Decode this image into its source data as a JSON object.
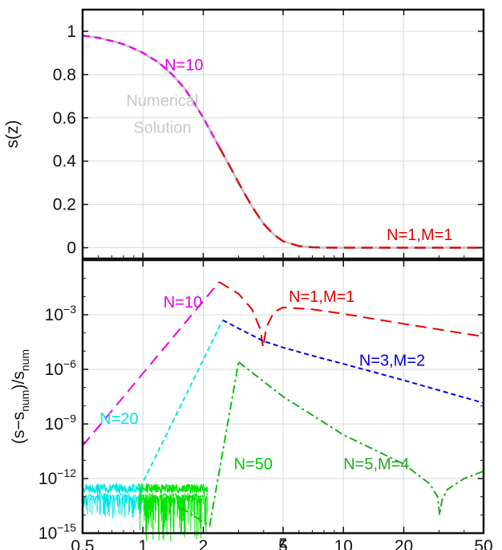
{
  "chart_data": [
    {
      "type": "line",
      "ylabel": "s(z)",
      "xscale": "log",
      "xlim": [
        0.5,
        50
      ],
      "ylim": [
        -0.05,
        1.1
      ],
      "grid": true,
      "xticks": [
        0.5,
        1,
        2,
        5,
        10,
        20,
        50
      ],
      "yticks": [
        0,
        0.2,
        0.4,
        0.6,
        0.8,
        1
      ],
      "ytick_labels": [
        "0",
        "0.2",
        "0.4",
        "0.6",
        "0.8",
        "1"
      ],
      "annotations": [
        {
          "id": "n10",
          "text": "N=10",
          "color": "#e600e6",
          "x": 1.6,
          "y": 0.82
        },
        {
          "id": "numsol1",
          "text": "Numerical",
          "color": "#c8c8c8",
          "x": 1.25,
          "y": 0.655
        },
        {
          "id": "numsol2",
          "text": "Solution",
          "color": "#c8c8c8",
          "x": 1.25,
          "y": 0.53
        },
        {
          "id": "n1m1",
          "text": "N=1,M=1",
          "color": "#e60000",
          "x": 24,
          "y": 0.035
        }
      ],
      "series": [
        {
          "id": "numerical",
          "color": "#c8c8c8",
          "dash": "solid",
          "x": [
            0.5,
            0.6,
            0.7,
            0.8,
            0.9,
            1.0,
            1.2,
            1.4,
            1.6,
            1.8,
            2.0,
            2.2,
            2.4,
            2.7,
            3.0,
            3.5,
            4.0,
            4.5,
            5.0,
            6.0,
            7.0,
            8.0,
            10.0,
            50.0
          ],
          "y": [
            0.98,
            0.97,
            0.955,
            0.94,
            0.92,
            0.9,
            0.855,
            0.8,
            0.74,
            0.67,
            0.6,
            0.53,
            0.465,
            0.38,
            0.3,
            0.19,
            0.11,
            0.06,
            0.03,
            0.008,
            0.002,
            0.0005,
            0.0,
            0.0
          ]
        },
        {
          "id": "n10",
          "name": "N=10",
          "color": "#e600e6",
          "dash": "9,6",
          "x": [
            0.5,
            0.6,
            0.7,
            0.8,
            0.9,
            1.0,
            1.2,
            1.4,
            1.6,
            1.8,
            2.0,
            2.2,
            2.4
          ],
          "y": [
            0.98,
            0.97,
            0.955,
            0.94,
            0.92,
            0.9,
            0.855,
            0.8,
            0.74,
            0.67,
            0.6,
            0.53,
            0.465
          ]
        },
        {
          "id": "n1m1",
          "name": "N=1,M=1",
          "color": "#e60000",
          "dash": "14,8",
          "x": [
            2.4,
            2.7,
            3.0,
            3.5,
            4.0,
            4.5,
            5.0,
            6.0,
            7.0,
            8.0,
            10.0,
            15.0,
            20.0,
            50.0
          ],
          "y": [
            0.465,
            0.38,
            0.3,
            0.19,
            0.11,
            0.06,
            0.03,
            0.008,
            0.002,
            0.0005,
            0.0,
            0.0,
            0.0,
            0.0
          ]
        }
      ]
    },
    {
      "type": "line",
      "xlabel": "z",
      "xscale": "log",
      "yscale": "log",
      "xlim": [
        0.5,
        50
      ],
      "ylim": [
        1e-15,
        1.0
      ],
      "grid": true,
      "xticks": [
        0.5,
        1,
        2,
        5,
        10,
        20,
        50
      ],
      "xtick_labels": [
        "0.5",
        "1",
        "2",
        "5",
        "10",
        "20",
        "50"
      ],
      "yticks": [
        -15,
        -12,
        -9,
        -6,
        -3
      ],
      "ytick_labels": [
        "10",
        "10",
        "10",
        "10",
        "10"
      ],
      "ytick_exponents": [
        "−15",
        "−12",
        "−9",
        "−6",
        "−3"
      ],
      "ylabel_parts": [
        "(s−s",
        "num",
        ")/s",
        "num"
      ],
      "annotations": [
        {
          "id": "n10b",
          "text": "N=10",
          "color": "#e600e6",
          "x": 1.58,
          "logy": -2.6
        },
        {
          "id": "n1m1b",
          "text": "N=1,M=1",
          "color": "#e60000",
          "x": 7.8,
          "logy": -2.3
        },
        {
          "id": "n3m2",
          "text": "N=3,M=2",
          "color": "#0000e6",
          "x": 17.5,
          "logy": -5.8
        },
        {
          "id": "n20",
          "text": "N=20",
          "color": "#00e6e6",
          "x": 0.76,
          "logy": -9.0
        },
        {
          "id": "n50",
          "text": "N=50",
          "color": "#00c800",
          "x": 3.55,
          "logy": -11.5
        },
        {
          "id": "n5m4",
          "text": "N=5,M=4",
          "color": "#22a822",
          "x": 14.6,
          "logy": -11.5
        }
      ],
      "series": [
        {
          "id": "n10",
          "name": "N=10",
          "color": "#e600e6",
          "dash": "14,8",
          "x": [
            0.5,
            2.4
          ],
          "logy": [
            -10.2,
            -1.2
          ]
        },
        {
          "id": "n1m1",
          "name": "N=1,M=1",
          "color": "#e60000",
          "dash": "14,8",
          "x": [
            2.4,
            3.0,
            3.5,
            3.85,
            3.98,
            4.12,
            4.5,
            5.0,
            7.0,
            10.0,
            20.0,
            50.0
          ],
          "logy": [
            -1.2,
            -1.85,
            -2.7,
            -3.8,
            -4.8,
            -3.7,
            -2.85,
            -2.6,
            -2.7,
            -2.95,
            -3.5,
            -4.2
          ]
        },
        {
          "id": "n3m2",
          "name": "N=3,M=2",
          "color": "#0000e6",
          "dash": "6,4",
          "x": [
            2.5,
            3.0,
            4.0,
            5.0,
            7.0,
            10.0,
            20.0,
            50.0
          ],
          "logy": [
            -3.3,
            -3.75,
            -4.45,
            -4.8,
            -5.25,
            -5.7,
            -6.6,
            -7.85
          ]
        },
        {
          "id": "n20",
          "name": "N=20",
          "color": "#00e6e6",
          "dash": "6,4",
          "x": [
            0.97,
            2.5
          ],
          "logy": [
            -12.5,
            -3.3
          ]
        },
        {
          "id": "n50",
          "name": "N=50",
          "color": "#00c800",
          "dash": "10,4,3,4",
          "x": [
            1.55,
            2.15,
            3.0
          ],
          "logy": [
            -13.6,
            -14.6,
            -5.6
          ]
        },
        {
          "id": "n5m4",
          "name": "N=5,M=4",
          "color": "#22a822",
          "dash": "10,4,3,4",
          "x": [
            3.0,
            5.0,
            10.0,
            20.0,
            27.0,
            29.5,
            30.2,
            31.0,
            33.0,
            40.0,
            50.0
          ],
          "logy": [
            -5.6,
            -7.5,
            -9.6,
            -11.2,
            -12.3,
            -13.0,
            -14.0,
            -13.2,
            -12.6,
            -12.0,
            -11.6
          ]
        },
        {
          "id": "noise_cyan",
          "color": "#00e6e6",
          "x_range": [
            0.5,
            1.0
          ],
          "logy_range": [
            -13.6,
            -12.3
          ]
        },
        {
          "id": "noise_green",
          "color": "#00e600",
          "x_range": [
            0.95,
            2.1
          ],
          "logy_range": [
            -14.9,
            -12.3
          ]
        }
      ]
    }
  ]
}
